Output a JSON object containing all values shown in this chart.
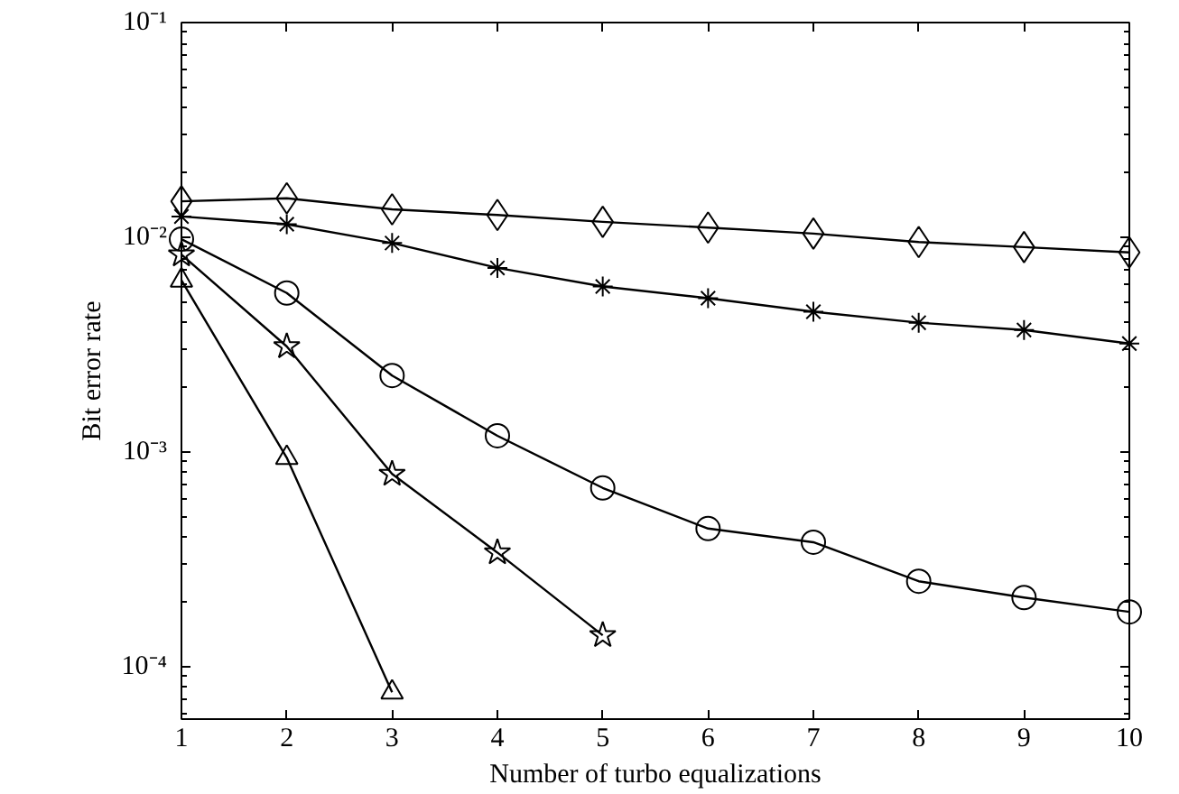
{
  "chart_data": {
    "type": "line",
    "xlabel": "Number of turbo equalizations",
    "ylabel": "Bit error rate",
    "log": "y",
    "grid": false,
    "line_style": "solid",
    "x": [
      1,
      2,
      3,
      4,
      5,
      6,
      7,
      8,
      9,
      10
    ],
    "xlim": [
      1,
      10
    ],
    "xticks": [
      1,
      2,
      3,
      4,
      5,
      6,
      7,
      8,
      9,
      10
    ],
    "ylim": [
      5.7e-05,
      0.1
    ],
    "yticks": [
      {
        "value": 0.0001,
        "label": "10⁻⁴"
      },
      {
        "value": 0.001,
        "label": "10⁻³"
      },
      {
        "value": 0.01,
        "label": "10⁻²"
      },
      {
        "value": 0.1,
        "label": "10⁻¹"
      }
    ],
    "series": [
      {
        "color": "#000000",
        "marker": "diamond",
        "values": [
          0.0147,
          0.0152,
          0.0135,
          0.0127,
          0.0118,
          0.0111,
          0.0104,
          0.0095,
          0.009,
          0.0085
        ]
      },
      {
        "color": "#000000",
        "marker": "cross",
        "values": [
          0.0125,
          0.0115,
          0.0094,
          0.0072,
          0.0059,
          0.0052,
          0.0045,
          0.004,
          0.0037,
          0.0032
        ]
      },
      {
        "color": "#000000",
        "marker": "circle",
        "values": [
          0.0098,
          0.0055,
          0.00227,
          0.00119,
          0.00068,
          0.00044,
          0.00038,
          0.00025,
          0.00021,
          0.00018
        ]
      },
      {
        "color": "#000000",
        "marker": "star",
        "values": [
          0.0083,
          0.0031,
          0.00079,
          0.00034,
          0.00014,
          null,
          null,
          null,
          null,
          null
        ]
      },
      {
        "color": "#000000",
        "marker": "triangle",
        "values": [
          0.0063,
          0.00094,
          7.6e-05,
          null,
          null,
          null,
          null,
          null,
          null,
          null
        ]
      }
    ]
  }
}
